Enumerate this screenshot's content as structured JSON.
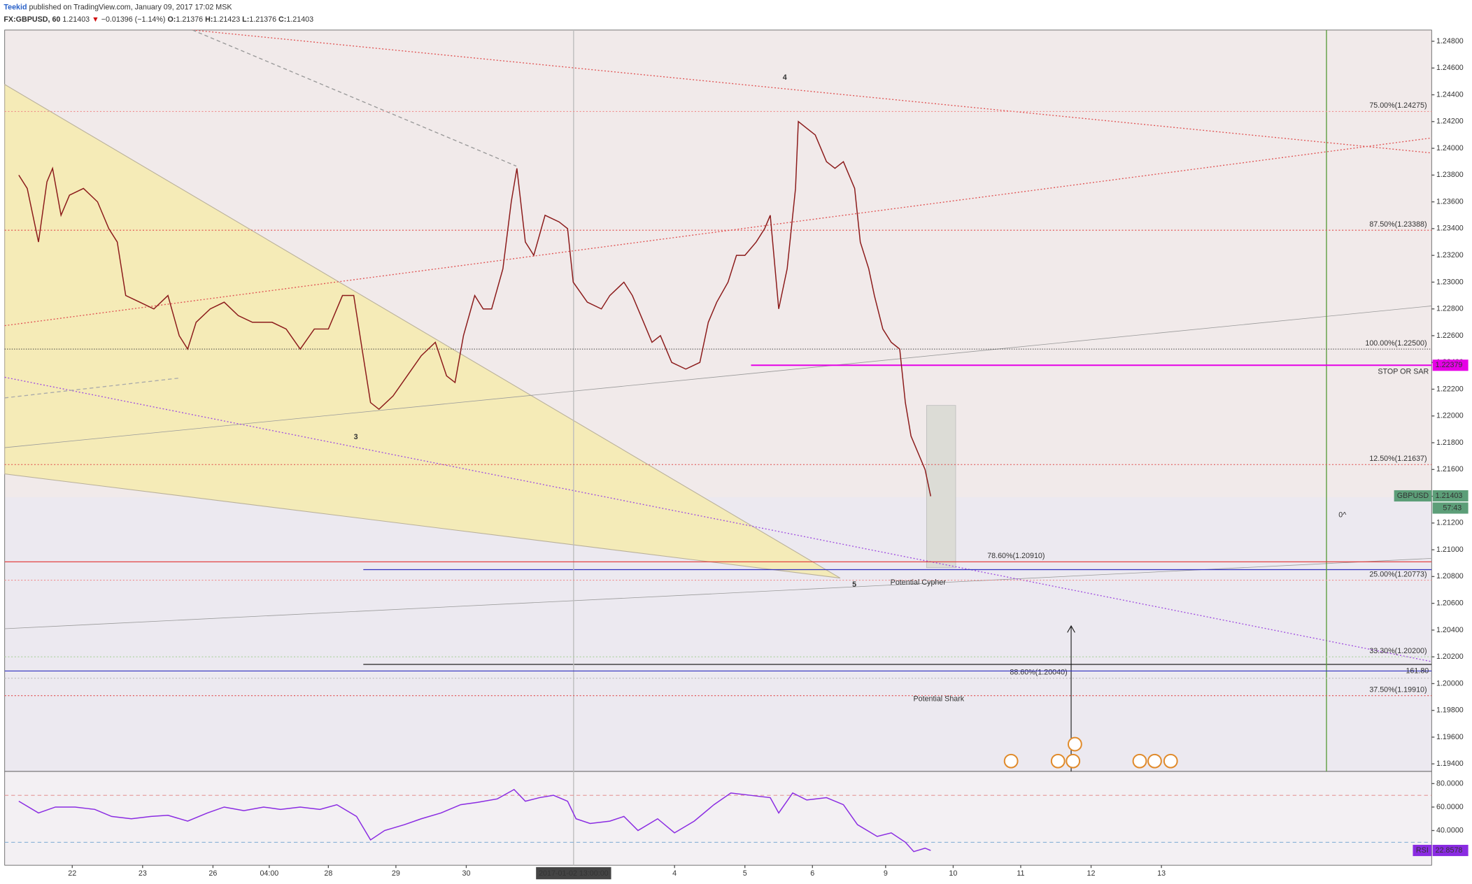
{
  "header": {
    "author": "Teekid",
    "published": "published on TradingView.com, January 09, 2017 17:02 MSK",
    "symbol": "FX:GBPUSD, 60",
    "last": "1.21403",
    "arrow": "▼",
    "change": "−0.01396 (−1.14%)",
    "o_label": "O:",
    "o": "1.21376",
    "h_label": "H:",
    "h": "1.21423",
    "l_label": "L:",
    "l": "1.21376",
    "c_label": "C:",
    "c": "1.21403"
  },
  "chart_data": [
    {
      "type": "line",
      "xlim": [
        0,
        507
      ],
      "ylim": [
        1.19344,
        1.24884
      ],
      "xticks": [
        {
          "value": 24,
          "label": "22"
        },
        {
          "value": 49,
          "label": "23"
        },
        {
          "value": 74,
          "label": "26"
        },
        {
          "value": 94,
          "label": "04:00"
        },
        {
          "value": 115,
          "label": "28"
        },
        {
          "value": 139,
          "label": "29"
        },
        {
          "value": 164,
          "label": "30"
        },
        {
          "value": 238,
          "label": "4"
        },
        {
          "value": 263,
          "label": "5"
        },
        {
          "value": 287,
          "label": "6"
        },
        {
          "value": 313,
          "label": "9"
        },
        {
          "value": 337,
          "label": "10"
        },
        {
          "value": 361,
          "label": "11"
        },
        {
          "value": 386,
          "label": "12"
        },
        {
          "value": 411,
          "label": "13"
        }
      ],
      "crosshair_label": "2017-01-02 13:00:00",
      "yticks": [
        {
          "value": 1.194,
          "label": "1.19400"
        },
        {
          "value": 1.196,
          "label": "1.19600"
        },
        {
          "value": 1.198,
          "label": "1.19800"
        },
        {
          "value": 1.2,
          "label": "1.20000"
        },
        {
          "value": 1.202,
          "label": "1.20200"
        },
        {
          "value": 1.204,
          "label": "1.20400"
        },
        {
          "value": 1.206,
          "label": "1.20600"
        },
        {
          "value": 1.208,
          "label": "1.20800"
        },
        {
          "value": 1.21,
          "label": "1.21000"
        },
        {
          "value": 1.212,
          "label": "1.21200"
        },
        {
          "value": 1.214,
          "label": "1.21400"
        },
        {
          "value": 1.216,
          "label": "1.21600"
        },
        {
          "value": 1.218,
          "label": "1.21800"
        },
        {
          "value": 1.22,
          "label": "1.22000"
        },
        {
          "value": 1.222,
          "label": "1.22200"
        },
        {
          "value": 1.224,
          "label": "1.22400"
        },
        {
          "value": 1.226,
          "label": "1.22600"
        },
        {
          "value": 1.228,
          "label": "1.22800"
        },
        {
          "value": 1.23,
          "label": "1.23000"
        },
        {
          "value": 1.232,
          "label": "1.23200"
        },
        {
          "value": 1.234,
          "label": "1.23400"
        },
        {
          "value": 1.236,
          "label": "1.23600"
        },
        {
          "value": 1.238,
          "label": "1.23800"
        },
        {
          "value": 1.24,
          "label": "1.24000"
        },
        {
          "value": 1.242,
          "label": "1.24200"
        },
        {
          "value": 1.244,
          "label": "1.24400"
        },
        {
          "value": 1.246,
          "label": "1.24600"
        },
        {
          "value": 1.248,
          "label": "1.24800"
        }
      ],
      "series": [
        {
          "name": "GBPUSD",
          "color": "#8b1a1a",
          "x": [
            5,
            8,
            12,
            15,
            17,
            20,
            23,
            28,
            33,
            37,
            40,
            43,
            48,
            53,
            58,
            62,
            65,
            68,
            73,
            78,
            83,
            88,
            95,
            100,
            105,
            110,
            115,
            120,
            124,
            127,
            130,
            133,
            138,
            143,
            148,
            153,
            157,
            160,
            163,
            167,
            170,
            173,
            177,
            180,
            182,
            185,
            188,
            192,
            197,
            200,
            202,
            207,
            212,
            215,
            220,
            223,
            227,
            230,
            233,
            237,
            242,
            247,
            250,
            253,
            257,
            260,
            263,
            267,
            270,
            272,
            275,
            278,
            281,
            282,
            285,
            288,
            292,
            295,
            298,
            302,
            304,
            307,
            309,
            312,
            315,
            318,
            320,
            322,
            324,
            327,
            329
          ],
          "values": [
            1.238,
            1.237,
            1.233,
            1.2375,
            1.2385,
            1.235,
            1.2365,
            1.237,
            1.236,
            1.234,
            1.233,
            1.229,
            1.2285,
            1.228,
            1.229,
            1.226,
            1.225,
            1.227,
            1.228,
            1.2285,
            1.2275,
            1.227,
            1.227,
            1.2265,
            1.225,
            1.2265,
            1.2265,
            1.229,
            1.229,
            1.225,
            1.221,
            1.2205,
            1.2215,
            1.223,
            1.2245,
            1.2255,
            1.223,
            1.2225,
            1.226,
            1.229,
            1.228,
            1.228,
            1.231,
            1.236,
            1.2385,
            1.233,
            1.232,
            1.235,
            1.2345,
            1.234,
            1.23,
            1.2285,
            1.228,
            1.229,
            1.23,
            1.229,
            1.227,
            1.2255,
            1.226,
            1.224,
            1.2235,
            1.224,
            1.227,
            1.2285,
            1.23,
            1.232,
            1.232,
            1.233,
            1.234,
            1.235,
            1.228,
            1.231,
            1.237,
            1.242,
            1.2415,
            1.241,
            1.239,
            1.2385,
            1.239,
            1.237,
            1.233,
            1.231,
            1.229,
            1.2265,
            1.2255,
            1.225,
            1.221,
            1.2185,
            1.2175,
            1.216,
            1.214
          ]
        }
      ],
      "levels": [
        {
          "value": 1.24275,
          "label": "75.00%(1.24275)",
          "color": "#f08a8a"
        },
        {
          "value": 1.23388,
          "label": "87.50%(1.23388)",
          "color": "#e04848"
        },
        {
          "value": 1.225,
          "label": "100.00%(1.22500)",
          "color": "#333333"
        },
        {
          "value": 1.22379,
          "label": "STOP OR SAR",
          "color": "#e600e6"
        },
        {
          "value": 1.21637,
          "label": "12.50%(1.21637)",
          "color": "#e04848"
        },
        {
          "value": 1.2091,
          "label": "78.60%(1.20910)",
          "color": "#e03030"
        },
        {
          "value": 1.20773,
          "label": "25.00%(1.20773)",
          "color": "#f08a8a"
        },
        {
          "value": 1.202,
          "label": "33.30%(1.20200)",
          "color": "#a9d09a"
        },
        {
          "value": 1.2004,
          "label": "88.60%(1.20040)",
          "color": "#b8b8b8"
        },
        {
          "value": 1.20094,
          "label": "161.80",
          "color": "#3030c0"
        },
        {
          "value": 1.1991,
          "label": "37.50%(1.19910)",
          "color": "#e04848"
        }
      ],
      "price_tags": [
        {
          "value": 1.21403,
          "label": "1.21403",
          "color": "#5c9e78"
        },
        {
          "value": 1.22379,
          "label": "1.22379",
          "color": "#e600e6"
        }
      ],
      "countdown": "57:43",
      "annotations": [
        "3",
        "4",
        "5",
        "Potential Cypher",
        "Potential Shark",
        "0^"
      ]
    },
    {
      "type": "line",
      "ylim": [
        10.4,
        90.4
      ],
      "xlim": [
        0,
        507
      ],
      "yticks": [
        {
          "value": 80,
          "label": "80.0000"
        },
        {
          "value": 60,
          "label": "60.0000"
        },
        {
          "value": 40,
          "label": "40.0000"
        }
      ],
      "bands": [
        70,
        30
      ],
      "series": [
        {
          "name": "RSI",
          "color": "#8a2be2",
          "x": [
            5,
            12,
            18,
            25,
            32,
            38,
            45,
            52,
            58,
            65,
            72,
            78,
            85,
            92,
            98,
            105,
            112,
            118,
            125,
            130,
            135,
            142,
            148,
            155,
            162,
            168,
            175,
            181,
            185,
            190,
            195,
            200,
            203,
            208,
            215,
            220,
            225,
            232,
            238,
            245,
            252,
            258,
            265,
            272,
            275,
            280,
            285,
            292,
            298,
            303,
            310,
            315,
            320,
            323,
            327,
            329
          ],
          "values": [
            65,
            55,
            60,
            60,
            58,
            52,
            50,
            52,
            53,
            48,
            55,
            60,
            57,
            60,
            58,
            60,
            58,
            62,
            52,
            32,
            40,
            45,
            50,
            55,
            62,
            64,
            67,
            75,
            65,
            68,
            70,
            65,
            50,
            46,
            48,
            52,
            40,
            50,
            38,
            48,
            62,
            72,
            70,
            68,
            55,
            72,
            66,
            68,
            62,
            45,
            35,
            38,
            30,
            22,
            25,
            23
          ]
        }
      ],
      "last_label": "22.8578"
    }
  ]
}
